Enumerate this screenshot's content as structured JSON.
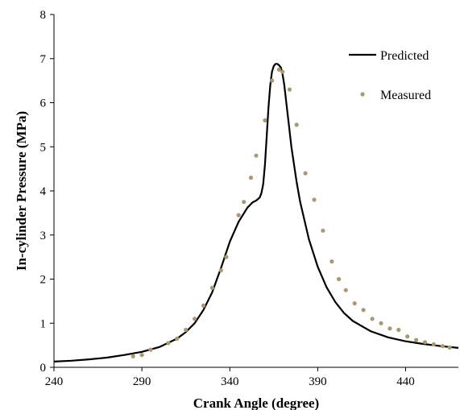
{
  "chart_data": {
    "type": "line",
    "xlabel": "Crank Angle (degree)",
    "ylabel": "In-cylinder Pressure (MPa)",
    "xlim": [
      240,
      470
    ],
    "ylim": [
      0,
      8
    ],
    "x_ticks": [
      240,
      290,
      340,
      390,
      440
    ],
    "y_ticks": [
      0,
      1,
      2,
      3,
      4,
      5,
      6,
      7,
      8
    ],
    "grid": false,
    "legend_placement": "top-right",
    "series": [
      {
        "name": "Predicted",
        "style": "line",
        "color": "#000000",
        "x": [
          240,
          250,
          260,
          270,
          280,
          290,
          300,
          310,
          315,
          320,
          325,
          330,
          335,
          340,
          345,
          350,
          353,
          355,
          357,
          358,
          359,
          360,
          361,
          362,
          363,
          364,
          365,
          366,
          367,
          368,
          369,
          370,
          371,
          372,
          373,
          375,
          378,
          380,
          385,
          390,
          395,
          400,
          405,
          410,
          420,
          430,
          440,
          450,
          460,
          470
        ],
        "y": [
          0.13,
          0.15,
          0.18,
          0.22,
          0.28,
          0.35,
          0.46,
          0.65,
          0.8,
          1.0,
          1.3,
          1.7,
          2.25,
          2.85,
          3.3,
          3.62,
          3.74,
          3.78,
          3.85,
          3.95,
          4.15,
          4.6,
          5.25,
          5.9,
          6.4,
          6.7,
          6.83,
          6.88,
          6.88,
          6.85,
          6.8,
          6.65,
          6.4,
          6.05,
          5.7,
          5.0,
          4.2,
          3.75,
          2.9,
          2.28,
          1.82,
          1.48,
          1.23,
          1.05,
          0.82,
          0.68,
          0.59,
          0.53,
          0.48,
          0.44
        ]
      },
      {
        "name": "Measured",
        "style": "markers",
        "color": "#a89a6e",
        "x": [
          285,
          290,
          295,
          305,
          310,
          315,
          320,
          325,
          330,
          335,
          338,
          345,
          348,
          352,
          355,
          360,
          364,
          368,
          370,
          374,
          378,
          383,
          388,
          393,
          398,
          402,
          406,
          411,
          416,
          421,
          426,
          431,
          436,
          441,
          446,
          451,
          456,
          461,
          465
        ],
        "y": [
          0.25,
          0.28,
          0.4,
          0.55,
          0.65,
          0.85,
          1.1,
          1.4,
          1.8,
          2.2,
          2.5,
          3.45,
          3.75,
          4.3,
          4.8,
          5.6,
          6.5,
          6.75,
          6.7,
          6.3,
          5.5,
          4.4,
          3.8,
          3.1,
          2.4,
          2.0,
          1.75,
          1.45,
          1.3,
          1.1,
          1.0,
          0.88,
          0.85,
          0.7,
          0.62,
          0.57,
          0.52,
          0.48,
          0.45
        ]
      }
    ]
  }
}
